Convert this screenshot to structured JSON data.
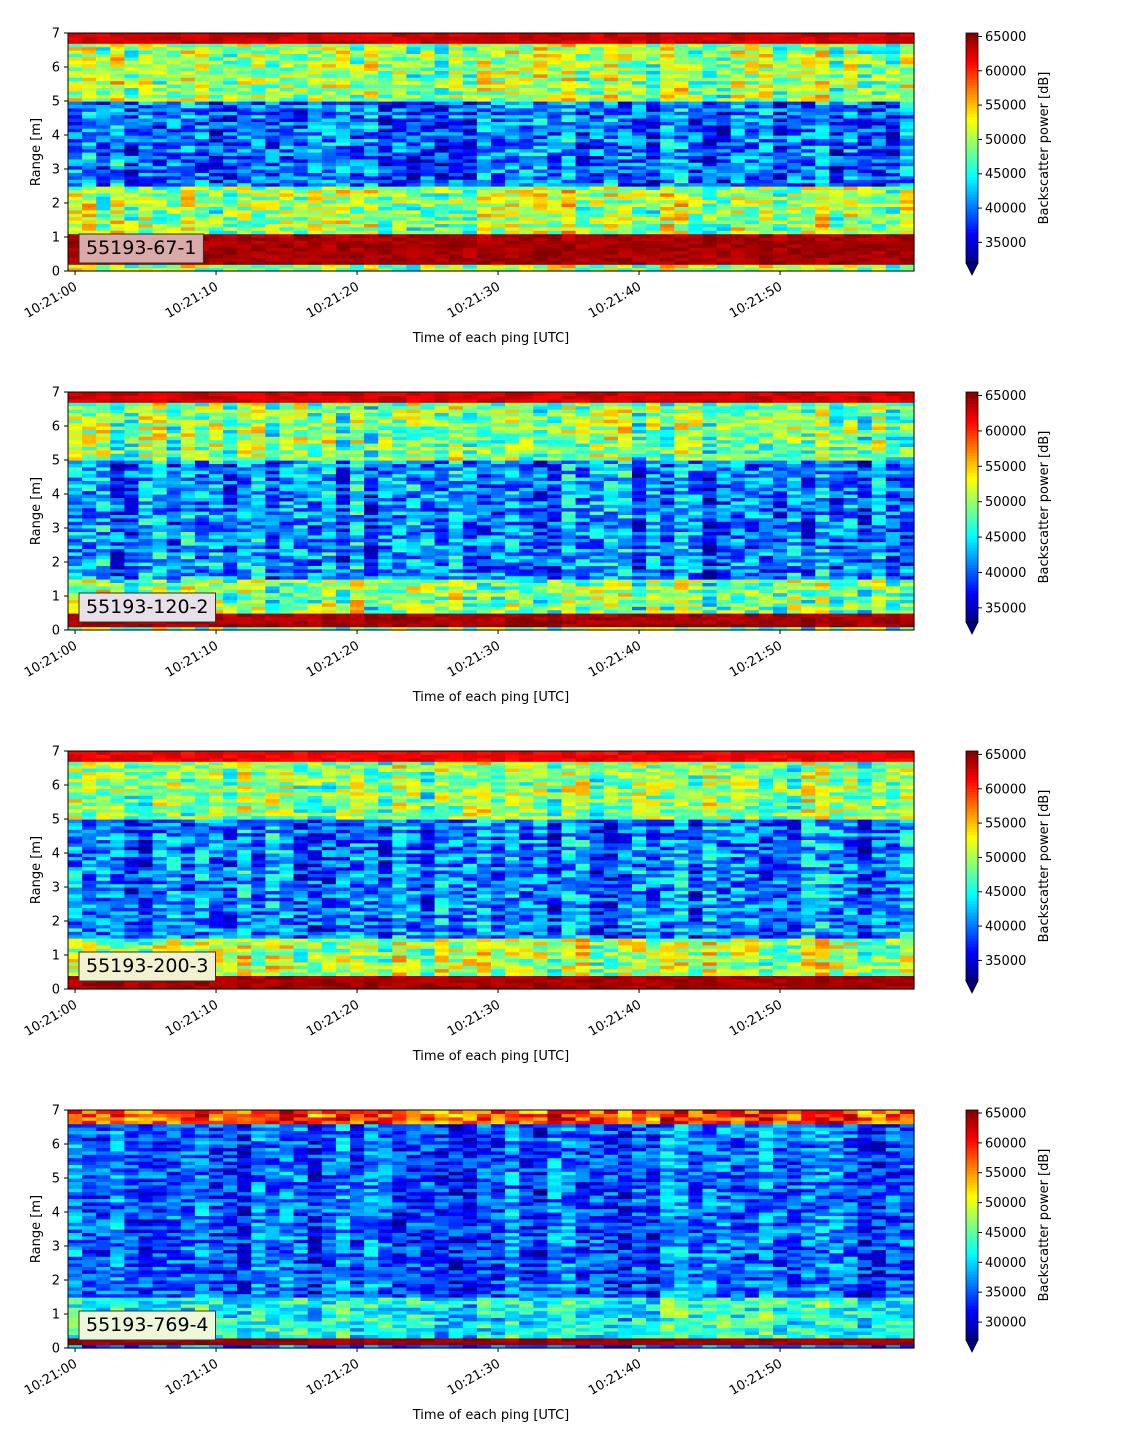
{
  "chart_data": [
    {
      "type": "heatmap",
      "label": "55193-67-1",
      "label_box_color": "#d9aaa8",
      "xlabel": "Time of each ping [UTC]",
      "ylabel": "Range [m]",
      "xticks": [
        "10:21:00",
        "10:21:10",
        "10:21:20",
        "10:21:30",
        "10:21:40",
        "10:21:50"
      ],
      "xlim_seconds": [
        -0.5,
        59.5
      ],
      "yticks": [
        0,
        1,
        2,
        3,
        4,
        5,
        6,
        7
      ],
      "ylim": [
        0,
        7
      ],
      "colorbar_label": "Backscatter power [dB]",
      "colorbar_ticks": [
        35000,
        40000,
        45000,
        50000,
        55000,
        60000,
        65000
      ],
      "clim": [
        32000,
        65500
      ],
      "colormap": "jet",
      "features": [
        {
          "range": [
            0.2,
            1.15
          ],
          "value": 65500
        },
        {
          "range": [
            6.7,
            7.0
          ],
          "value": 64000
        },
        {
          "range": [
            1.3,
            2.5
          ],
          "value": 50000
        },
        {
          "range": [
            2.5,
            5.0
          ],
          "value": 40000
        },
        {
          "range": [
            5.0,
            6.7
          ],
          "value": 50000
        }
      ]
    },
    {
      "type": "heatmap",
      "label": "55193-120-2",
      "label_box_color": "#e8e0e8",
      "xlabel": "Time of each ping [UTC]",
      "ylabel": "Range [m]",
      "xticks": [
        "10:21:00",
        "10:21:10",
        "10:21:20",
        "10:21:30",
        "10:21:40",
        "10:21:50"
      ],
      "xlim_seconds": [
        -0.5,
        59.5
      ],
      "yticks": [
        0,
        1,
        2,
        3,
        4,
        5,
        6,
        7
      ],
      "ylim": [
        0,
        7
      ],
      "colorbar_label": "Backscatter power [dB]",
      "colorbar_ticks": [
        35000,
        40000,
        45000,
        50000,
        55000,
        60000,
        65000
      ],
      "clim": [
        33000,
        65500
      ],
      "colormap": "jet",
      "features": [
        {
          "range": [
            0.1,
            0.5
          ],
          "value": 65500
        },
        {
          "range": [
            6.7,
            7.0
          ],
          "value": 64000
        },
        {
          "range": [
            0.5,
            1.5
          ],
          "value": 49000
        },
        {
          "range": [
            1.5,
            5.0
          ],
          "value": 41000
        },
        {
          "range": [
            5.0,
            6.7
          ],
          "value": 49000
        }
      ]
    },
    {
      "type": "heatmap",
      "label": "55193-200-3",
      "label_box_color": "#f2f2d0",
      "xlabel": "Time of each ping [UTC]",
      "ylabel": "Range [m]",
      "xticks": [
        "10:21:00",
        "10:21:10",
        "10:21:20",
        "10:21:30",
        "10:21:40",
        "10:21:50"
      ],
      "xlim_seconds": [
        -0.5,
        59.5
      ],
      "yticks": [
        0,
        1,
        2,
        3,
        4,
        5,
        6,
        7
      ],
      "ylim": [
        0,
        7
      ],
      "colorbar_label": "Backscatter power [dB]",
      "colorbar_ticks": [
        35000,
        40000,
        45000,
        50000,
        55000,
        60000,
        65000
      ],
      "clim": [
        32000,
        65500
      ],
      "colormap": "jet",
      "features": [
        {
          "range": [
            0.05,
            0.4
          ],
          "value": 65500
        },
        {
          "range": [
            6.7,
            7.0
          ],
          "value": 63000
        },
        {
          "range": [
            0.4,
            1.5
          ],
          "value": 50000
        },
        {
          "range": [
            1.5,
            5.0
          ],
          "value": 40000
        },
        {
          "range": [
            5.0,
            6.7
          ],
          "value": 49000
        }
      ]
    },
    {
      "type": "heatmap",
      "label": "55193-769-4",
      "label_box_color": "#eef7d8",
      "xlabel": "Time of each ping [UTC]",
      "ylabel": "Range [m]",
      "xticks": [
        "10:21:00",
        "10:21:10",
        "10:21:20",
        "10:21:30",
        "10:21:40",
        "10:21:50"
      ],
      "xlim_seconds": [
        -0.5,
        59.5
      ],
      "yticks": [
        0,
        1,
        2,
        3,
        4,
        5,
        6,
        7
      ],
      "ylim": [
        0,
        7
      ],
      "colorbar_label": "Backscatter power [dB]",
      "colorbar_ticks": [
        30000,
        35000,
        40000,
        45000,
        50000,
        55000,
        60000,
        65000
      ],
      "clim": [
        27000,
        65500
      ],
      "colormap": "jet",
      "features": [
        {
          "range": [
            0.1,
            0.3
          ],
          "value": 65500
        },
        {
          "range": [
            6.6,
            7.0
          ],
          "value": 58000
        },
        {
          "range": [
            0.3,
            1.5
          ],
          "value": 42000
        },
        {
          "range": [
            1.5,
            6.6
          ],
          "value": 35000
        }
      ]
    }
  ]
}
